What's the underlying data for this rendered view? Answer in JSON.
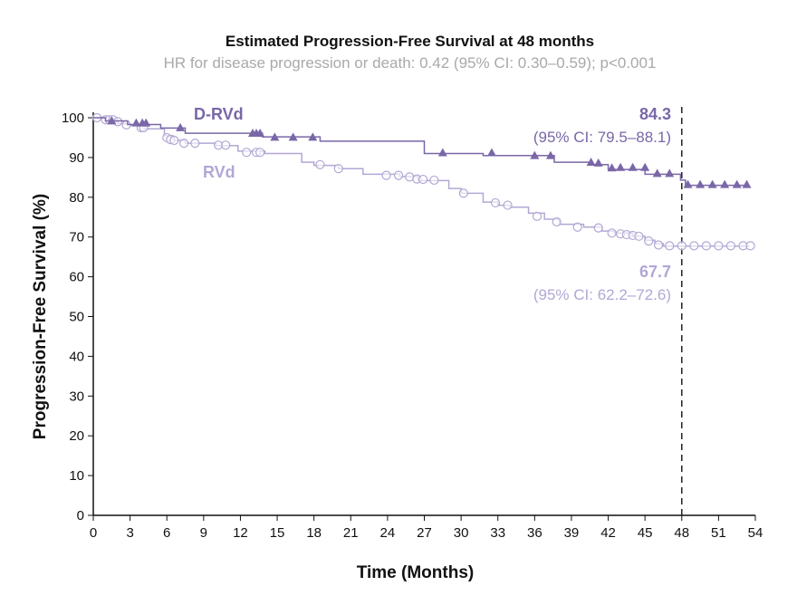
{
  "chart_data": {
    "type": "line",
    "title": "Estimated Progression-Free Survival at 48 months",
    "subtitle": "HR for disease progression or death: 0.42 (95% CI: 0.30–0.59); p<0.001",
    "xlabel": "Time (Months)",
    "ylabel": "Progression-Free Survival (%)",
    "xlim": [
      0,
      54
    ],
    "ylim": [
      0,
      100
    ],
    "xticks": [
      0,
      3,
      6,
      9,
      12,
      15,
      18,
      21,
      24,
      27,
      30,
      33,
      36,
      39,
      42,
      45,
      48,
      51,
      54
    ],
    "yticks": [
      0,
      10,
      20,
      30,
      40,
      50,
      60,
      70,
      80,
      90,
      100
    ],
    "grid": false,
    "reference_line_x": 48,
    "series": [
      {
        "name": "D-RVd",
        "color": "#7a67a8",
        "marker": "triangle",
        "steps": [
          [
            0,
            100
          ],
          [
            1,
            99.2
          ],
          [
            2.8,
            98.3
          ],
          [
            5.5,
            97.4
          ],
          [
            7.5,
            96.1
          ],
          [
            13.8,
            95.2
          ],
          [
            18.5,
            94.1
          ],
          [
            27,
            91
          ],
          [
            31.8,
            90.5
          ],
          [
            37.6,
            88.8
          ],
          [
            40.6,
            88.2
          ],
          [
            42,
            87
          ],
          [
            45,
            85.8
          ],
          [
            47.9,
            84.3
          ],
          [
            48.3,
            83
          ],
          [
            53.5,
            83
          ]
        ],
        "censored": [
          [
            1.5,
            99
          ],
          [
            3.5,
            98.5
          ],
          [
            4,
            98.5
          ],
          [
            4.3,
            98.5
          ],
          [
            7.1,
            97.3
          ],
          [
            13,
            95.9
          ],
          [
            13.3,
            95.9
          ],
          [
            13.6,
            95.9
          ],
          [
            14.8,
            94.9
          ],
          [
            16.3,
            94.9
          ],
          [
            17.9,
            94.9
          ],
          [
            28.5,
            91
          ],
          [
            32.5,
            91
          ],
          [
            36,
            90.3
          ],
          [
            37.3,
            90.3
          ],
          [
            40.6,
            88.6
          ],
          [
            41.2,
            88.4
          ],
          [
            42.3,
            87.2
          ],
          [
            43,
            87.3
          ],
          [
            44,
            87.3
          ],
          [
            45,
            87.3
          ],
          [
            46,
            85.8
          ],
          [
            47,
            85.8
          ],
          [
            48.5,
            83
          ],
          [
            49.5,
            83
          ],
          [
            50.5,
            83
          ],
          [
            51.5,
            83
          ],
          [
            52.5,
            83
          ],
          [
            53.3,
            83
          ]
        ],
        "label": "D-RVd",
        "estimate": "84.3",
        "ci": "(95% CI: 79.5–88.1)"
      },
      {
        "name": "RVd",
        "color": "#b2a7d5",
        "marker": "circle",
        "steps": [
          [
            0,
            100
          ],
          [
            1,
            99.3
          ],
          [
            2,
            98.5
          ],
          [
            3,
            98
          ],
          [
            4,
            97.2
          ],
          [
            5.8,
            95.5
          ],
          [
            6.5,
            94.3
          ],
          [
            7.5,
            93.6
          ],
          [
            10,
            93
          ],
          [
            11.8,
            91.6
          ],
          [
            14,
            91
          ],
          [
            17,
            88.8
          ],
          [
            18,
            88
          ],
          [
            20,
            87.2
          ],
          [
            22,
            85.8
          ],
          [
            25,
            85.2
          ],
          [
            26.5,
            84.2
          ],
          [
            29,
            82.2
          ],
          [
            30,
            81
          ],
          [
            31.8,
            78.8
          ],
          [
            33,
            78
          ],
          [
            34,
            77.5
          ],
          [
            35.5,
            76
          ],
          [
            36.8,
            74.5
          ],
          [
            38,
            73.2
          ],
          [
            40,
            72.5
          ],
          [
            41.5,
            71.5
          ],
          [
            42.5,
            71
          ],
          [
            44,
            70.2
          ],
          [
            45,
            69.2
          ],
          [
            45.8,
            68.3
          ],
          [
            46.5,
            67.7
          ],
          [
            53.5,
            67.7
          ]
        ],
        "censored": [
          [
            0.3,
            100
          ],
          [
            1,
            99.5
          ],
          [
            1.3,
            99.5
          ],
          [
            1.6,
            99.5
          ],
          [
            2,
            99
          ],
          [
            2.7,
            98.2
          ],
          [
            3.9,
            97.5
          ],
          [
            4.1,
            97.5
          ],
          [
            6,
            95
          ],
          [
            6.3,
            94.5
          ],
          [
            6.6,
            94.3
          ],
          [
            7.4,
            93.6
          ],
          [
            8.3,
            93.6
          ],
          [
            10.2,
            93.1
          ],
          [
            10.8,
            93.1
          ],
          [
            12.5,
            91.3
          ],
          [
            13.3,
            91.3
          ],
          [
            13.6,
            91.3
          ],
          [
            18.5,
            88.2
          ],
          [
            20,
            87.2
          ],
          [
            23.9,
            85.5
          ],
          [
            24.9,
            85.5
          ],
          [
            25.8,
            85.1
          ],
          [
            26.4,
            84.6
          ],
          [
            26.9,
            84.5
          ],
          [
            27.8,
            84.3
          ],
          [
            30.2,
            81
          ],
          [
            32.8,
            78.6
          ],
          [
            33.8,
            78
          ],
          [
            36.2,
            75.2
          ],
          [
            37.8,
            73.8
          ],
          [
            39.5,
            72.5
          ],
          [
            41.2,
            72.3
          ],
          [
            42.3,
            71
          ],
          [
            43,
            70.8
          ],
          [
            43.5,
            70.6
          ],
          [
            44,
            70.4
          ],
          [
            44.5,
            70.2
          ],
          [
            45.3,
            69
          ],
          [
            46.1,
            68
          ],
          [
            47,
            67.8
          ],
          [
            48,
            67.8
          ],
          [
            49,
            67.8
          ],
          [
            50,
            67.8
          ],
          [
            51,
            67.8
          ],
          [
            52,
            67.8
          ],
          [
            53,
            67.8
          ],
          [
            53.6,
            67.8
          ]
        ],
        "label": "RVd",
        "estimate": "67.7",
        "ci": "(95% CI: 62.2–72.6)"
      }
    ]
  }
}
